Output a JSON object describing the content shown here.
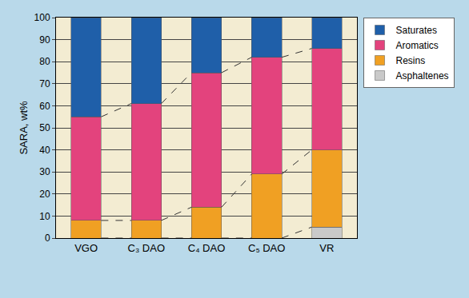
{
  "chart_data": {
    "type": "bar",
    "stacked": true,
    "ylabel": "SARA, wt%",
    "categories": [
      "VGO",
      "C₃ DAO",
      "C₄ DAO",
      "C₅ DAO",
      "VR"
    ],
    "series": [
      {
        "name": "Asphaltenes",
        "color": "#c9c9c9",
        "values": [
          0,
          0,
          0,
          0,
          5
        ]
      },
      {
        "name": "Resins",
        "color": "#f0a023",
        "values": [
          8,
          8,
          14,
          29,
          35
        ]
      },
      {
        "name": "Aromatics",
        "color": "#e3437d",
        "values": [
          47,
          53,
          61,
          53,
          46
        ]
      },
      {
        "name": "Saturates",
        "color": "#1f5fa9",
        "values": [
          45,
          39,
          25,
          18,
          14
        ]
      }
    ],
    "ylim": [
      0,
      100
    ],
    "yticks": [
      0,
      10,
      20,
      30,
      40,
      50,
      60,
      70,
      80,
      90,
      100
    ],
    "grid": true,
    "legend": "right"
  }
}
